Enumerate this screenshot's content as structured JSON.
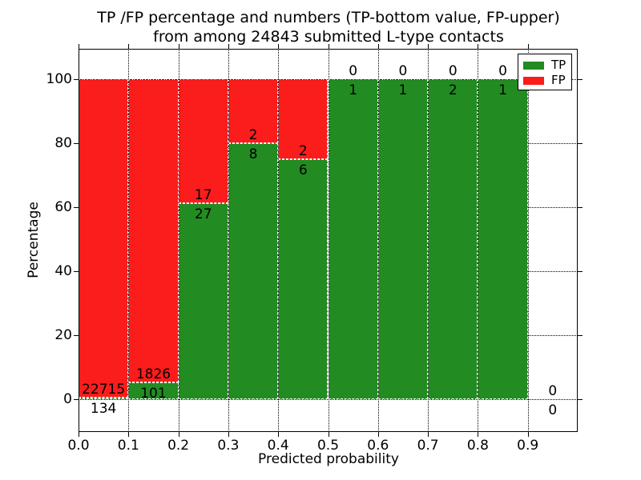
{
  "title": {
    "line1": "TP /FP percentage and numbers (TP-bottom value, FP-upper)",
    "line2": "from among 24843 submitted L-type contacts"
  },
  "chart_data": {
    "type": "bar",
    "stacked": true,
    "percent_normalized": true,
    "title": "TP /FP percentage and numbers (TP-bottom value, FP-upper) from among 24843 submitted L-type contacts",
    "xlabel": "Predicted probability",
    "ylabel": "Percentage",
    "total_contacts_in_title": 24843,
    "bin_width": 0.1,
    "bin_starts": [
      0.0,
      0.1,
      0.2,
      0.3,
      0.4,
      0.5,
      0.6,
      0.7,
      0.8,
      0.9
    ],
    "series": [
      {
        "name": "TP",
        "color": "#228b22",
        "values": [
          134,
          101,
          27,
          8,
          6,
          1,
          1,
          2,
          1,
          0
        ]
      },
      {
        "name": "FP",
        "color": "#fb1c1c",
        "values": [
          22715,
          1826,
          17,
          2,
          2,
          0,
          0,
          0,
          0,
          0
        ]
      }
    ],
    "tp_percent_by_bin": [
      0.59,
      5.24,
      61.36,
      80.0,
      75.0,
      100.0,
      100.0,
      100.0,
      100.0,
      null
    ],
    "xticks": [
      "0.0",
      "0.1",
      "0.2",
      "0.3",
      "0.4",
      "0.5",
      "0.6",
      "0.7",
      "0.8",
      "0.9"
    ],
    "yticks": [
      "0",
      "20",
      "40",
      "60",
      "80",
      "100"
    ],
    "ytick_values": [
      0,
      20,
      40,
      60,
      80,
      100
    ],
    "xlim": [
      0.0,
      1.0
    ],
    "ylim": [
      -10.2,
      109.6
    ],
    "grid": true,
    "grid_style": "dotted",
    "bar_edge_color": "#ffffff",
    "legend": {
      "position": "upper right",
      "entries": [
        {
          "label": "TP",
          "color": "#228b22"
        },
        {
          "label": "FP",
          "color": "#fb1c1c"
        }
      ]
    }
  }
}
